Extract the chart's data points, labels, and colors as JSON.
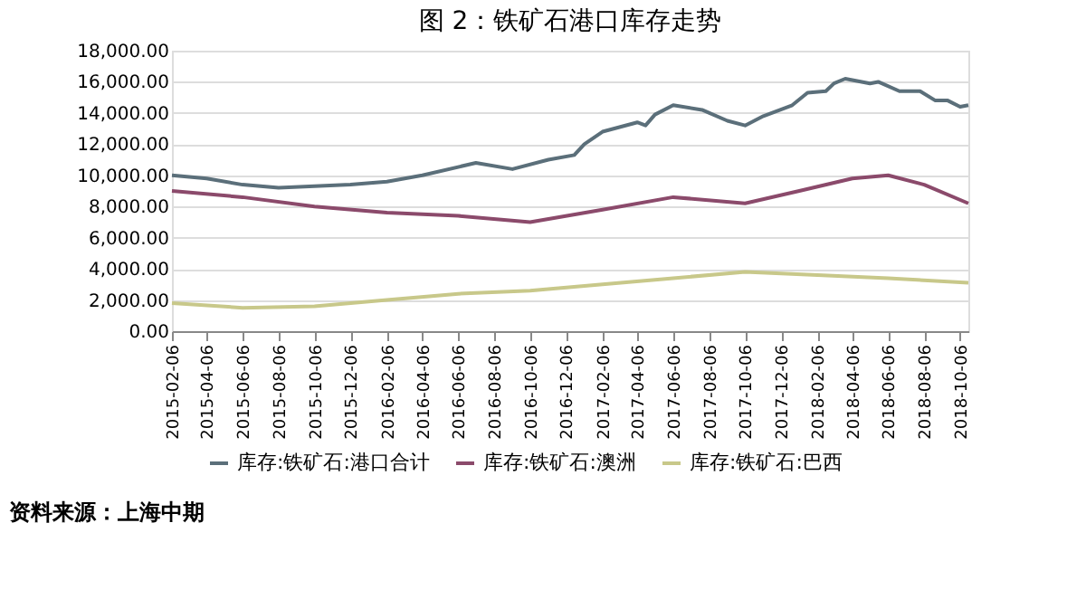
{
  "chart_data": {
    "type": "line",
    "title": "图 2：铁矿石港口库存走势",
    "legend": "bottom",
    "grid": "y",
    "xlim": [
      "2015-02-06",
      "2018-10-20"
    ],
    "xticks": [
      "2015-02-06",
      "2015-04-06",
      "2015-06-06",
      "2015-08-06",
      "2015-10-06",
      "2015-12-06",
      "2016-02-06",
      "2016-04-06",
      "2016-06-06",
      "2016-08-06",
      "2016-10-06",
      "2016-12-06",
      "2017-02-06",
      "2017-04-06",
      "2017-06-06",
      "2017-08-06",
      "2017-10-06",
      "2017-12-06",
      "2018-02-06",
      "2018-04-06",
      "2018-06-06",
      "2018-08-06",
      "2018-10-06"
    ],
    "ylim": [
      0,
      18000
    ],
    "yticks": [
      {
        "value": 0,
        "label": "0.00"
      },
      {
        "value": 2000,
        "label": "2,000.00"
      },
      {
        "value": 4000,
        "label": "4,000.00"
      },
      {
        "value": 6000,
        "label": "6,000.00"
      },
      {
        "value": 8000,
        "label": "8,000.00"
      },
      {
        "value": 10000,
        "label": "10,000.00"
      },
      {
        "value": 12000,
        "label": "12,000.00"
      },
      {
        "value": 14000,
        "label": "14,000.00"
      },
      {
        "value": 16000,
        "label": "16,000.00"
      },
      {
        "value": 18000,
        "label": "18,000.00"
      }
    ],
    "series": [
      {
        "name": "库存:铁矿石:港口合计",
        "color": "#5b6f7a",
        "x": [
          "2015-02-06",
          "2015-04-06",
          "2015-06-06",
          "2015-08-06",
          "2015-10-06",
          "2015-12-06",
          "2016-02-06",
          "2016-04-06",
          "2016-07-06",
          "2016-09-06",
          "2016-11-06",
          "2016-12-20",
          "2017-01-06",
          "2017-02-06",
          "2017-04-06",
          "2017-04-20",
          "2017-05-06",
          "2017-06-06",
          "2017-07-25",
          "2017-09-06",
          "2017-10-06",
          "2017-11-06",
          "2017-12-25",
          "2018-01-20",
          "2018-02-20",
          "2018-03-06",
          "2018-03-25",
          "2018-05-06",
          "2018-05-20",
          "2018-06-25",
          "2018-07-30",
          "2018-08-25",
          "2018-09-15",
          "2018-10-06",
          "2018-10-20"
        ],
        "values": [
          10000,
          9800,
          9400,
          9200,
          9300,
          9400,
          9600,
          10000,
          10800,
          10400,
          11000,
          11300,
          12000,
          12800,
          13400,
          13200,
          13900,
          14500,
          14200,
          13500,
          13200,
          13800,
          14500,
          15300,
          15400,
          15900,
          16200,
          15900,
          16000,
          15400,
          15400,
          14800,
          14800,
          14400,
          14500
        ]
      },
      {
        "name": "库存:铁矿石:澳洲",
        "color": "#8b4a6b",
        "x": [
          "2015-02-06",
          "2015-06-06",
          "2015-10-06",
          "2016-02-06",
          "2016-06-06",
          "2016-10-06",
          "2017-02-06",
          "2017-06-06",
          "2017-10-06",
          "2018-01-06",
          "2018-04-06",
          "2018-06-06",
          "2018-08-06",
          "2018-10-20"
        ],
        "values": [
          9000,
          8600,
          8000,
          7600,
          7400,
          7000,
          7800,
          8600,
          8200,
          9000,
          9800,
          10000,
          9400,
          8200
        ]
      },
      {
        "name": "库存:铁矿石:巴西",
        "color": "#c8c88a",
        "x": [
          "2015-02-06",
          "2015-06-06",
          "2015-10-06",
          "2016-02-06",
          "2016-06-06",
          "2016-10-06",
          "2017-02-06",
          "2017-06-06",
          "2017-10-06",
          "2018-02-06",
          "2018-06-06",
          "2018-10-20"
        ],
        "values": [
          1800,
          1500,
          1600,
          2000,
          2400,
          2600,
          3000,
          3400,
          3800,
          3600,
          3400,
          3100
        ]
      }
    ],
    "annotations": [
      "资料来源：上海中期"
    ]
  }
}
